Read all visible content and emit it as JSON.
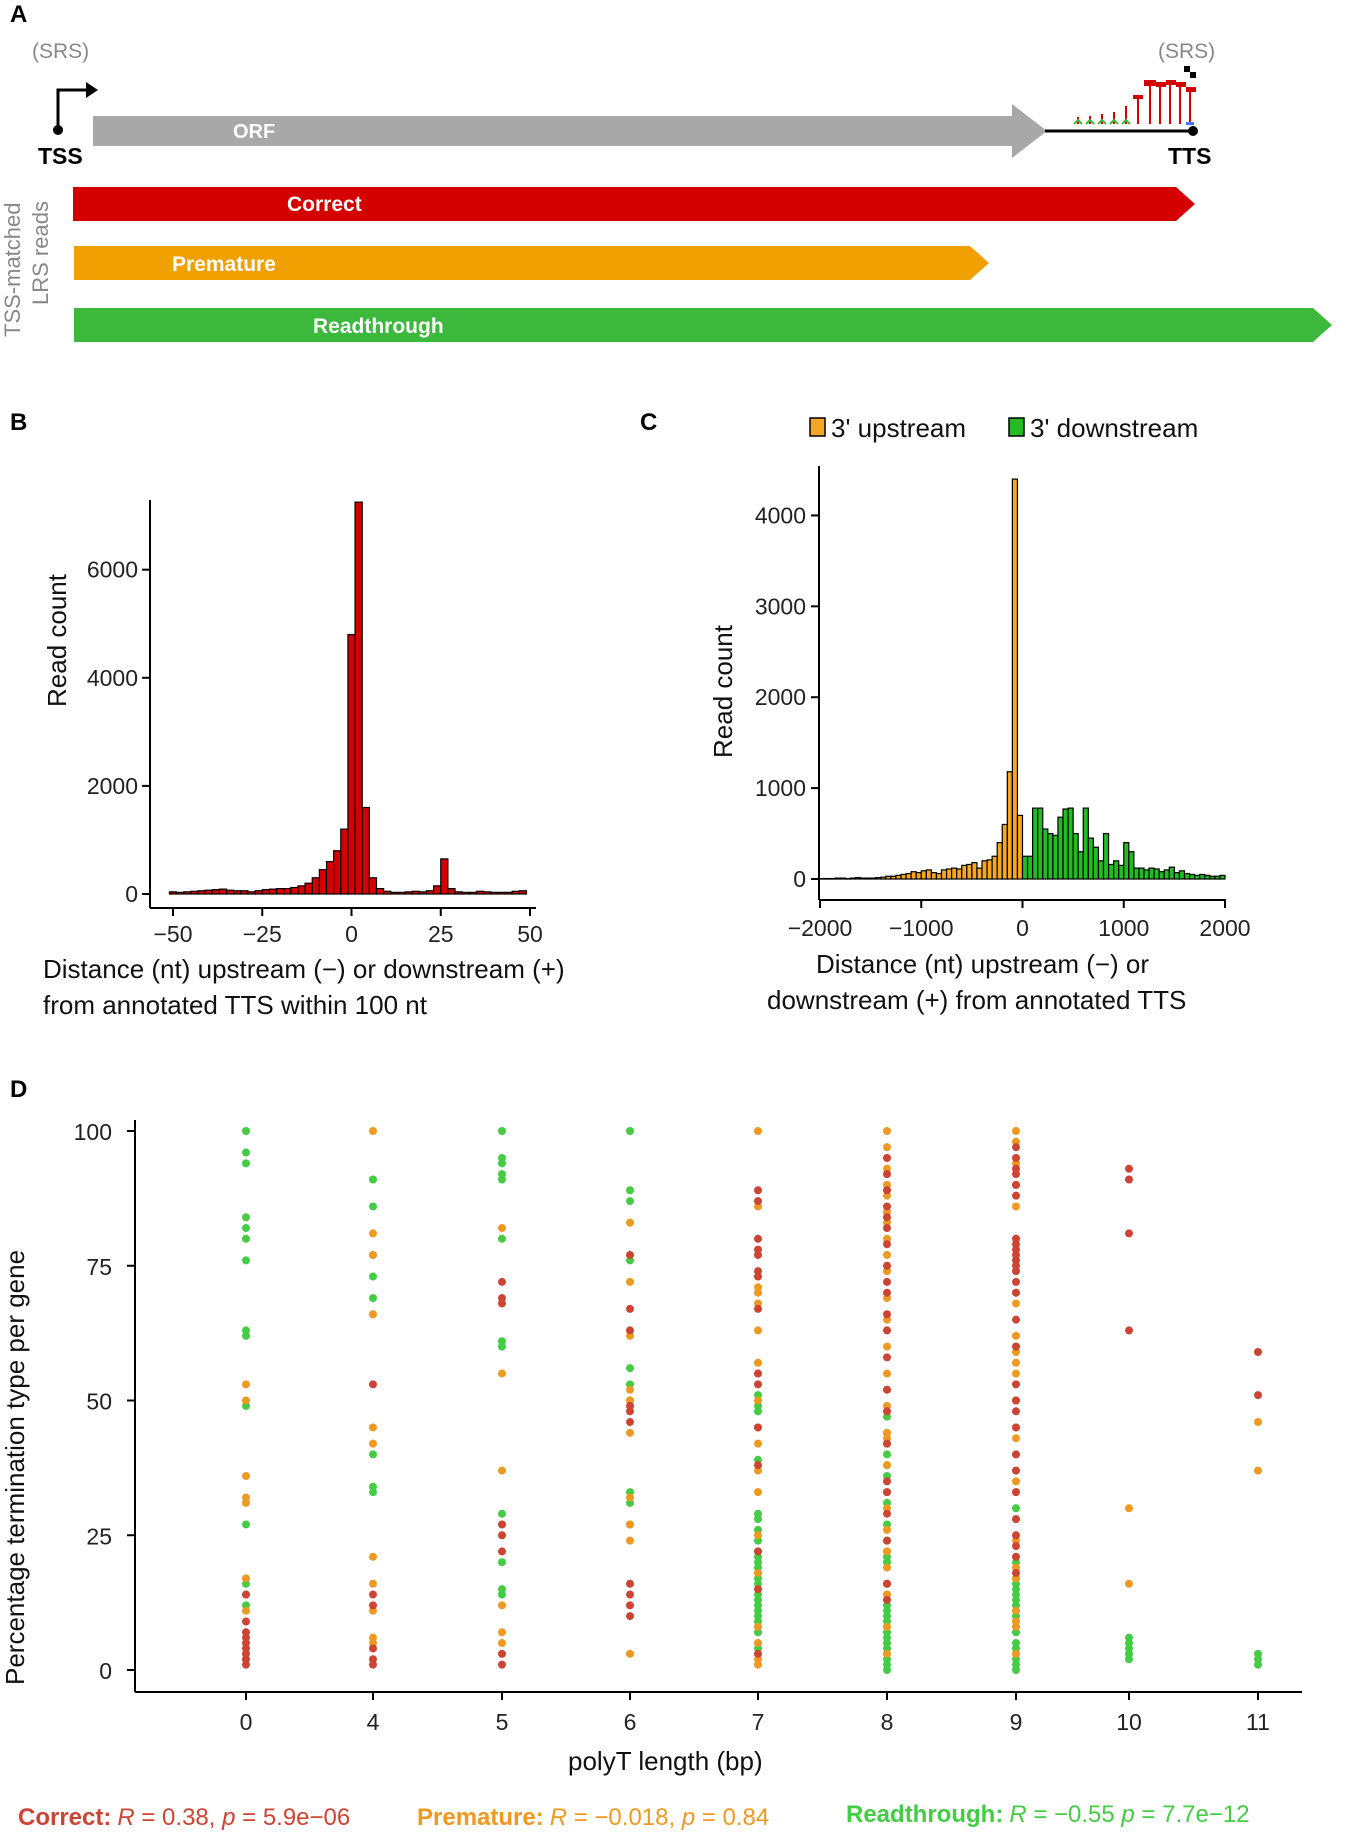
{
  "panels": {
    "a": "A",
    "b": "B",
    "c": "C",
    "d": "D"
  },
  "colors": {
    "correct": "#d40000",
    "premature": "#f0a000",
    "readthrough": "#3cb83c",
    "gray": "#a8a8a8",
    "upstream": "#f5a623",
    "downstream": "#22bb22",
    "dot_correct": "#cc4433",
    "dot_premature": "#ee9922",
    "dot_readthrough": "#44cc44"
  },
  "schematic": {
    "srs_left": "(SRS)",
    "srs_right": "(SRS)",
    "orf": "ORF",
    "tss": "TSS",
    "tts": "TTS",
    "vertical_label_1": "TSS-matched",
    "vertical_label_2": "LRS reads",
    "correct": "Correct",
    "premature": "Premature",
    "readthrough": "Readthrough"
  },
  "chart_data": [
    {
      "id": "B",
      "type": "bar",
      "title": "",
      "xlabel_1": "Distance (nt) upstream (−) or downstream (+)",
      "xlabel_2": "from annotated TTS within 100 nt",
      "ylabel": "Read count",
      "xlim": [
        -50,
        50
      ],
      "ylim": [
        0,
        7400
      ],
      "xticks": [
        -50,
        -25,
        0,
        25,
        50
      ],
      "xtick_labels": [
        "−50",
        "−25",
        "0",
        "25",
        "50"
      ],
      "yticks": [
        0,
        2000,
        4000,
        6000
      ],
      "bin_width": 2,
      "x": [
        -50,
        -48,
        -46,
        -44,
        -42,
        -40,
        -38,
        -36,
        -34,
        -32,
        -30,
        -28,
        -26,
        -24,
        -22,
        -20,
        -18,
        -16,
        -14,
        -12,
        -10,
        -8,
        -6,
        -4,
        -2,
        0,
        2,
        4,
        6,
        8,
        10,
        12,
        14,
        16,
        18,
        20,
        22,
        24,
        26,
        28,
        30,
        32,
        34,
        36,
        38,
        40,
        42,
        44,
        46,
        48
      ],
      "values": [
        40,
        30,
        40,
        50,
        60,
        70,
        80,
        90,
        70,
        60,
        60,
        40,
        60,
        80,
        90,
        100,
        100,
        120,
        150,
        200,
        300,
        450,
        600,
        800,
        1200,
        4800,
        7250,
        1600,
        300,
        100,
        50,
        30,
        30,
        40,
        50,
        40,
        60,
        150,
        650,
        100,
        40,
        30,
        30,
        50,
        40,
        30,
        30,
        30,
        50,
        60
      ]
    },
    {
      "id": "C",
      "type": "bar",
      "title": "",
      "xlabel_1": "Distance (nt) upstream (−) or",
      "xlabel_2": "downstream (+) from annotated TTS",
      "ylabel": "Read count",
      "xlim": [
        -2000,
        2000
      ],
      "ylim": [
        0,
        4600
      ],
      "xticks": [
        -2000,
        -1000,
        0,
        1000,
        2000
      ],
      "xtick_labels": [
        "−2000",
        "−1000",
        "0",
        "1000",
        "2000"
      ],
      "yticks": [
        0,
        1000,
        2000,
        3000,
        4000
      ],
      "legend": [
        "3' upstream",
        "3' downstream"
      ],
      "bin_width": 50,
      "upstream_x": [
        -2000,
        -1950,
        -1900,
        -1850,
        -1800,
        -1750,
        -1700,
        -1650,
        -1600,
        -1550,
        -1500,
        -1450,
        -1400,
        -1350,
        -1300,
        -1250,
        -1200,
        -1150,
        -1100,
        -1050,
        -1000,
        -950,
        -900,
        -850,
        -800,
        -750,
        -700,
        -650,
        -600,
        -550,
        -500,
        -450,
        -400,
        -350,
        -300,
        -250,
        -200,
        -150,
        -100,
        -50
      ],
      "upstream_values": [
        5,
        5,
        5,
        10,
        10,
        5,
        10,
        15,
        10,
        10,
        10,
        15,
        20,
        30,
        30,
        40,
        50,
        60,
        80,
        70,
        90,
        100,
        70,
        60,
        100,
        110,
        120,
        110,
        150,
        160,
        180,
        120,
        200,
        210,
        250,
        400,
        600,
        1180,
        4400,
        700
      ],
      "downstream_x": [
        0,
        50,
        100,
        150,
        200,
        250,
        300,
        350,
        400,
        450,
        500,
        550,
        600,
        650,
        700,
        750,
        800,
        850,
        900,
        950,
        1000,
        1050,
        1100,
        1150,
        1200,
        1250,
        1300,
        1350,
        1400,
        1450,
        1500,
        1550,
        1600,
        1650,
        1700,
        1750,
        1800,
        1850,
        1900,
        1950
      ],
      "downstream_values": [
        250,
        250,
        780,
        780,
        550,
        500,
        480,
        680,
        770,
        780,
        500,
        300,
        780,
        450,
        350,
        200,
        500,
        160,
        200,
        150,
        400,
        300,
        120,
        120,
        100,
        120,
        110,
        80,
        100,
        130,
        70,
        90,
        60,
        50,
        40,
        50,
        40,
        30,
        30,
        40
      ]
    },
    {
      "id": "D",
      "type": "scatter",
      "title": "",
      "xlabel": "polyT length (bp)",
      "ylabel": "Percentage termination type per gene",
      "categories": [
        "0",
        "4",
        "5",
        "6",
        "7",
        "8",
        "9",
        "10",
        "11"
      ],
      "ylim": [
        0,
        100
      ],
      "yticks": [
        0,
        25,
        50,
        75,
        100
      ],
      "series": [
        {
          "name": "Correct",
          "points": {
            "0": [
              1,
              2,
              3,
              4,
              5,
              6,
              7,
              9,
              14
            ],
            "4": [
              1,
              2,
              4,
              12,
              14,
              53
            ],
            "5": [
              1,
              3,
              22,
              25,
              27,
              68,
              69,
              72
            ],
            "6": [
              10,
              12,
              14,
              16,
              46,
              48,
              49,
              63,
              67,
              77
            ],
            "7": [
              3,
              15,
              22,
              38,
              45,
              53,
              55,
              67,
              73,
              74,
              77,
              78,
              80,
              87,
              89
            ],
            "8": [
              13,
              16,
              24,
              29,
              33,
              35,
              42,
              48,
              52,
              58,
              63,
              66,
              70,
              72,
              75,
              79,
              82,
              84,
              86,
              89,
              92,
              95
            ],
            "9": [
              18,
              21,
              23,
              25,
              28,
              33,
              37,
              40,
              45,
              48,
              50,
              53,
              60,
              65,
              70,
              72,
              74,
              75,
              76,
              77,
              78,
              79,
              80,
              88,
              90,
              92,
              93,
              95,
              97
            ],
            "10": [
              63,
              81,
              91,
              93
            ],
            "11": [
              51,
              59
            ]
          }
        },
        {
          "name": "Premature",
          "points": {
            "0": [
              2,
              11,
              17,
              31,
              32,
              36,
              50,
              53
            ],
            "4": [
              5,
              6,
              11,
              16,
              21,
              42,
              45,
              66,
              77,
              81,
              100
            ],
            "5": [
              5,
              7,
              12,
              37,
              55,
              82
            ],
            "6": [
              3,
              24,
              27,
              32,
              44,
              50,
              52,
              62,
              72,
              83
            ],
            "7": [
              1,
              2,
              5,
              8,
              18,
              25,
              33,
              37,
              42,
              45,
              50,
              55,
              57,
              63,
              68,
              70,
              71,
              73,
              86,
              100
            ],
            "8": [
              3,
              8,
              14,
              16,
              19,
              22,
              26,
              30,
              33,
              38,
              43,
              44,
              49,
              55,
              60,
              65,
              69,
              74,
              77,
              80,
              83,
              85,
              88,
              90,
              93,
              95,
              97,
              100
            ],
            "9": [
              3,
              8,
              9,
              11,
              17,
              19,
              24,
              33,
              35,
              43,
              45,
              50,
              55,
              57,
              59,
              62,
              68,
              70,
              80,
              86,
              90,
              94,
              98,
              100
            ],
            "10": [
              16,
              30
            ],
            "11": [
              37,
              46
            ]
          }
        },
        {
          "name": "Readthrough",
          "points": {
            "0": [
              12,
              14,
              16,
              27,
              49,
              62,
              63,
              76,
              80,
              82,
              84,
              94,
              96,
              100
            ],
            "4": [
              33,
              34,
              40,
              69,
              73,
              77,
              86,
              91
            ],
            "5": [
              14,
              15,
              20,
              27,
              29,
              60,
              61,
              80,
              91,
              92,
              94,
              95,
              100
            ],
            "6": [
              27,
              31,
              33,
              50,
              53,
              56,
              76,
              87,
              89,
              100
            ],
            "7": [
              4,
              5,
              7,
              8,
              9,
              10,
              11,
              12,
              13,
              14,
              15,
              16,
              17,
              18,
              19,
              20,
              21,
              22,
              24,
              26,
              28,
              29,
              39,
              48,
              49,
              51
            ],
            "8": [
              0,
              1,
              2,
              3,
              4,
              5,
              6,
              7,
              8,
              9,
              10,
              11,
              12,
              13,
              14,
              16,
              20,
              21,
              22,
              24,
              27,
              31,
              36,
              38,
              40,
              42,
              44,
              47,
              52
            ],
            "9": [
              0,
              1,
              2,
              3,
              4,
              5,
              7,
              8,
              9,
              10,
              11,
              12,
              13,
              14,
              15,
              16,
              17,
              20,
              28,
              30,
              37,
              40,
              60
            ],
            "10": [
              2,
              3,
              4,
              5,
              6
            ],
            "11": [
              1,
              2,
              3
            ]
          }
        }
      ]
    }
  ],
  "stats": {
    "correct_name": "Correct:",
    "correct_r": " = 0.38, ",
    "correct_p": " = 5.9e−06",
    "premature_name": "Premature:",
    "premature_r": " = −0.018, ",
    "premature_p": " = 0.84",
    "readthrough_name": "Readthrough:",
    "readthrough_r": " = −0.55  ",
    "readthrough_p": " = 7.7e−12",
    "r_symbol": "R",
    "p_symbol": "p"
  }
}
